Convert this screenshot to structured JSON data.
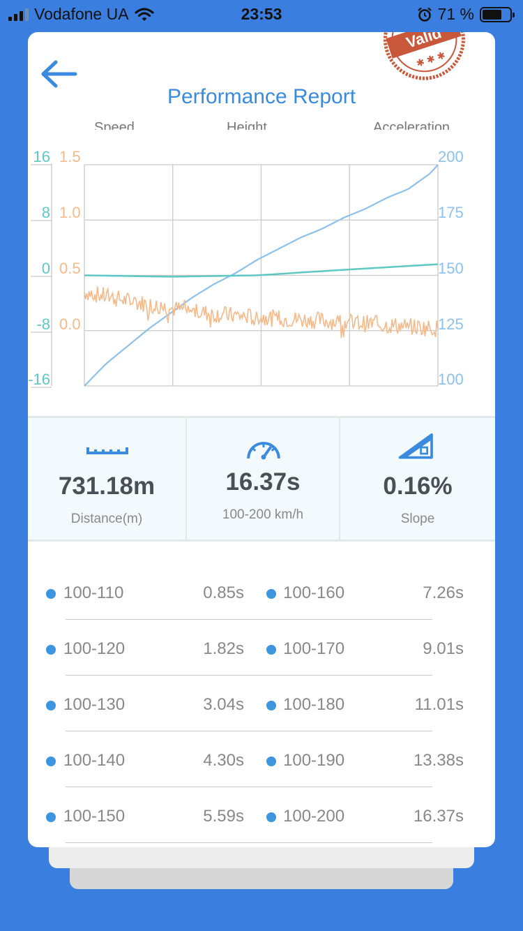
{
  "status_bar": {
    "carrier": "Vodafone UA",
    "time": "23:53",
    "battery": "71 %",
    "battery_level": 0.71
  },
  "header": {
    "title": "Performance Report",
    "stamp_text": "Valid"
  },
  "chart_data": {
    "type": "line",
    "series": [
      {
        "name": "Speed",
        "color": "#8ec0ec",
        "axis": "right",
        "ylim": [
          100,
          200
        ],
        "x": [
          0,
          1,
          2,
          3,
          4,
          5,
          6,
          7,
          8,
          9,
          10,
          11,
          12,
          13,
          14,
          15,
          16,
          16.37
        ],
        "values": [
          100,
          110,
          118,
          126,
          133,
          140,
          146,
          151,
          157,
          162,
          167,
          171,
          176,
          180,
          185,
          189,
          196,
          200
        ]
      },
      {
        "name": "Height",
        "color": "#f5b98a",
        "axis": "left-inner",
        "ylim": [
          -0.5,
          1.5
        ],
        "x": [
          0,
          2,
          4,
          6,
          8,
          10,
          12,
          14,
          16.37
        ],
        "values": [
          0.35,
          0.27,
          0.2,
          0.15,
          0.12,
          0.1,
          0.08,
          0.05,
          0.02
        ]
      },
      {
        "name": "Acceleration",
        "color": "#5ec9c4",
        "axis": "left-outer",
        "ylim": [
          -16,
          16
        ],
        "x": [
          0,
          4,
          8,
          12,
          16.37
        ],
        "values": [
          0,
          -0.2,
          0,
          0.8,
          1.6
        ]
      }
    ],
    "axes": {
      "left_outer_ticks": [
        "16",
        "8",
        "0",
        "-8",
        "-16"
      ],
      "left_inner_ticks": [
        "1.5",
        "1.0",
        "0.5",
        "0.0"
      ],
      "right_ticks": [
        "200",
        "175",
        "150",
        "125",
        "100"
      ]
    },
    "grid": true
  },
  "stats": [
    {
      "value": "731.18m",
      "label": "Distance(m)",
      "icon": "ruler-icon"
    },
    {
      "value": "16.37s",
      "label": "100-200 km/h",
      "icon": "speedometer-icon"
    },
    {
      "value": "0.16%",
      "label": "Slope",
      "icon": "slope-icon"
    }
  ],
  "splits": [
    {
      "left_label": "100-110",
      "left_time": "0.85s",
      "right_label": "100-160",
      "right_time": "7.26s"
    },
    {
      "left_label": "100-120",
      "left_time": "1.82s",
      "right_label": "100-170",
      "right_time": "9.01s"
    },
    {
      "left_label": "100-130",
      "left_time": "3.04s",
      "right_label": "100-180",
      "right_time": "11.01s"
    },
    {
      "left_label": "100-140",
      "left_time": "4.30s",
      "right_label": "100-190",
      "right_time": "13.38s"
    },
    {
      "left_label": "100-150",
      "left_time": "5.59s",
      "right_label": "100-200",
      "right_time": "16.37s"
    }
  ],
  "colors": {
    "background": "#3a7fdf",
    "accent": "#3a8be0",
    "teal": "#5ec9c4",
    "orange": "#f5b98a",
    "blue": "#8ec0ec"
  }
}
